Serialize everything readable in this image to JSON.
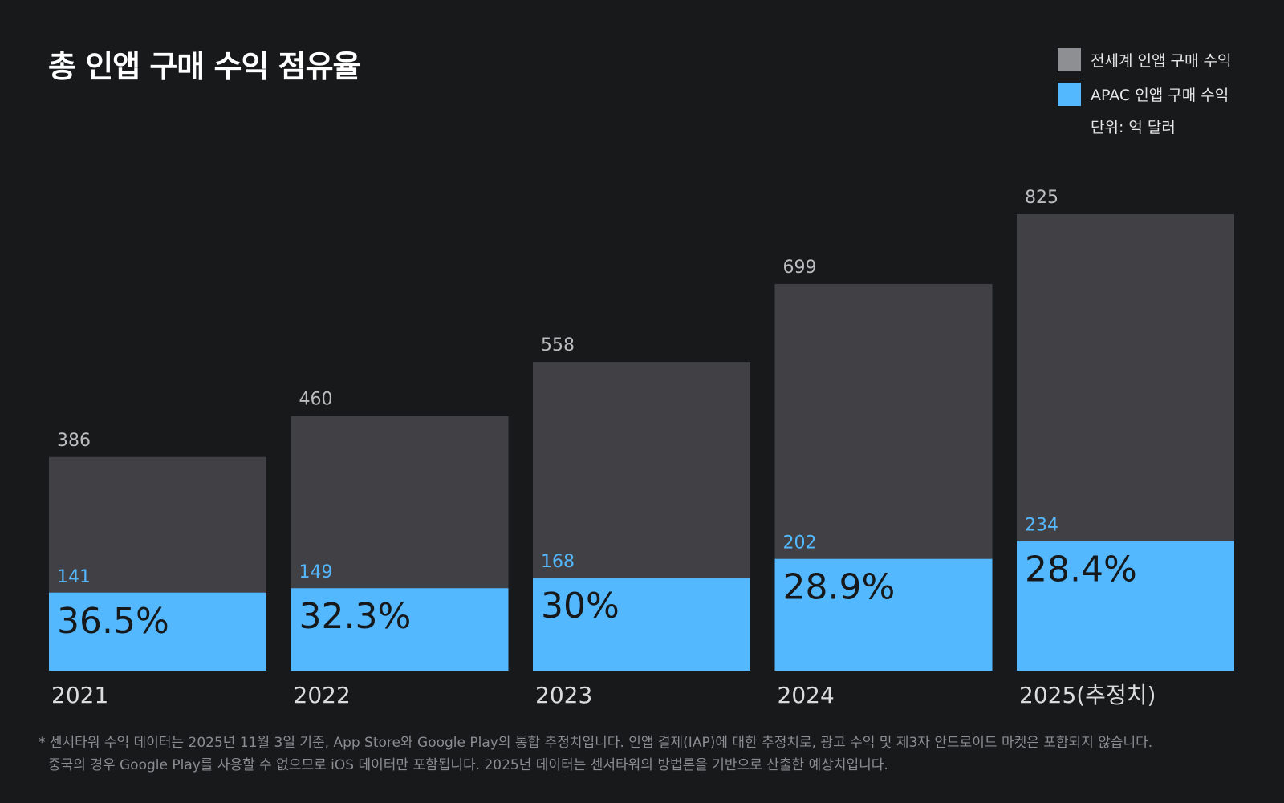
{
  "title": "총 인앱 구매 수익 점유율",
  "legend": {
    "world_label": "전세계 인앱 구매 수익",
    "apac_label": "APAC 인앱 구매 수익",
    "unit": "단위: 억 달러"
  },
  "colors": {
    "background": "#17191b",
    "world": "#414145",
    "apac": "#54b8ff",
    "world_legend": "#8e8f93"
  },
  "chart_data": {
    "type": "bar",
    "title": "총 인앱 구매 수익 점유율",
    "categories": [
      "2021",
      "2022",
      "2023",
      "2024",
      "2025(추정치)"
    ],
    "series": [
      {
        "name": "전세계 인앱 구매 수익",
        "values": [
          386,
          460,
          558,
          699,
          825
        ],
        "labels": [
          "386",
          "460",
          "558",
          "699",
          "825"
        ]
      },
      {
        "name": "APAC 인앱 구매 수익",
        "values": [
          141,
          149,
          168,
          202,
          234
        ],
        "labels": [
          "141",
          "149",
          "168",
          "202",
          "234"
        ]
      }
    ],
    "share_labels": [
      "36.5%",
      "32.3%",
      "30%",
      "28.9%",
      "28.4%"
    ],
    "ylim": [
      0,
      825
    ],
    "xlabel": "",
    "ylabel": "",
    "unit": "단위: 억 달러",
    "grid": false,
    "legend_position": "top-right",
    "layout": "overlapping bars"
  },
  "footnote": {
    "line1": "* 센서타워 수익 데이터는 2025년 11월 3일 기준, App Store와 Google Play의 통합 추정치입니다. 인앱 결제(IAP)에 대한 추정치로, 광고 수익 및 제3자 안드로이드 마켓은 포함되지 않습니다.",
    "line2": "중국의 경우 Google Play를 사용할 수 없으므로 iOS 데이터만 포함됩니다. 2025년 데이터는 센서타워의 방법론을 기반으로 산출한 예상치입니다."
  }
}
